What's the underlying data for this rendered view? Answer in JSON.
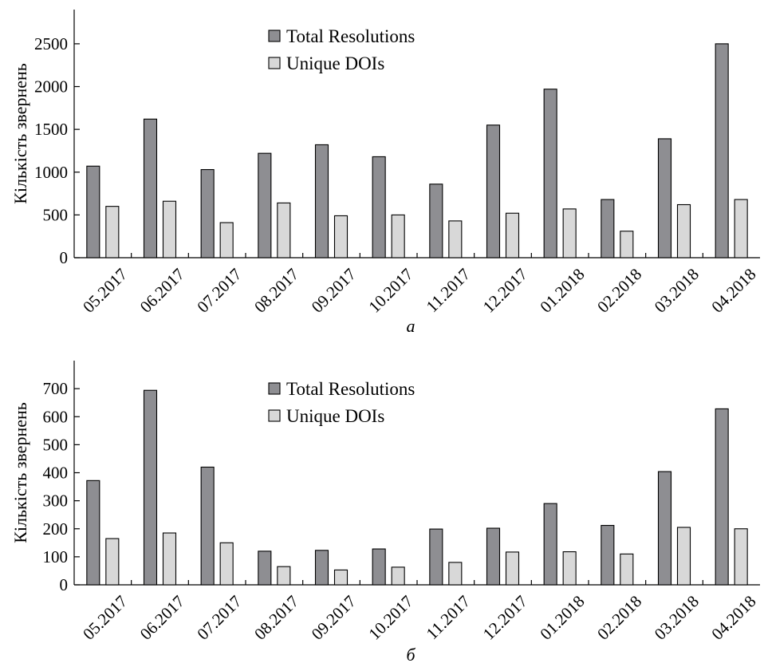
{
  "colors": {
    "total": "#8e8e92",
    "unique": "#d8d8d8"
  },
  "chart_data": [
    {
      "type": "bar",
      "panel_label": "а",
      "ylabel": "Кількість звернень",
      "xlabel": "",
      "ylim": [
        0,
        2900
      ],
      "yticks": [
        0,
        500,
        1000,
        1500,
        2000,
        2500
      ],
      "grid": false,
      "legend_position": "top-center",
      "categories": [
        "05.2017",
        "06.2017",
        "07.2017",
        "08.2017",
        "09.2017",
        "10.2017",
        "11.2017",
        "12.2017",
        "01.2018",
        "02.2018",
        "03.2018",
        "04.2018"
      ],
      "series": [
        {
          "name": "Total Resolutions",
          "color_key": "total",
          "values": [
            1070,
            1620,
            1030,
            1220,
            1320,
            1180,
            860,
            1550,
            1970,
            680,
            1390,
            2500
          ]
        },
        {
          "name": "Unique DOIs",
          "color_key": "unique",
          "values": [
            600,
            660,
            410,
            640,
            490,
            500,
            430,
            520,
            570,
            310,
            620,
            680
          ]
        }
      ]
    },
    {
      "type": "bar",
      "panel_label": "б",
      "ylabel": "Кількість звернень",
      "xlabel": "",
      "ylim": [
        0,
        800
      ],
      "yticks": [
        0,
        100,
        200,
        300,
        400,
        500,
        600,
        700
      ],
      "grid": false,
      "legend_position": "top-center",
      "categories": [
        "05.2017",
        "06.2017",
        "07.2017",
        "08.2017",
        "09.2017",
        "10.2017",
        "11.2017",
        "12.2017",
        "01.2018",
        "02.2018",
        "03.2018",
        "04.2018"
      ],
      "series": [
        {
          "name": "Total Resolutions",
          "color_key": "total",
          "values": [
            372,
            694,
            420,
            120,
            123,
            128,
            199,
            202,
            290,
            212,
            404,
            628
          ]
        },
        {
          "name": "Unique DOIs",
          "color_key": "unique",
          "values": [
            165,
            185,
            150,
            65,
            53,
            63,
            80,
            117,
            118,
            110,
            205,
            200
          ]
        }
      ]
    }
  ]
}
